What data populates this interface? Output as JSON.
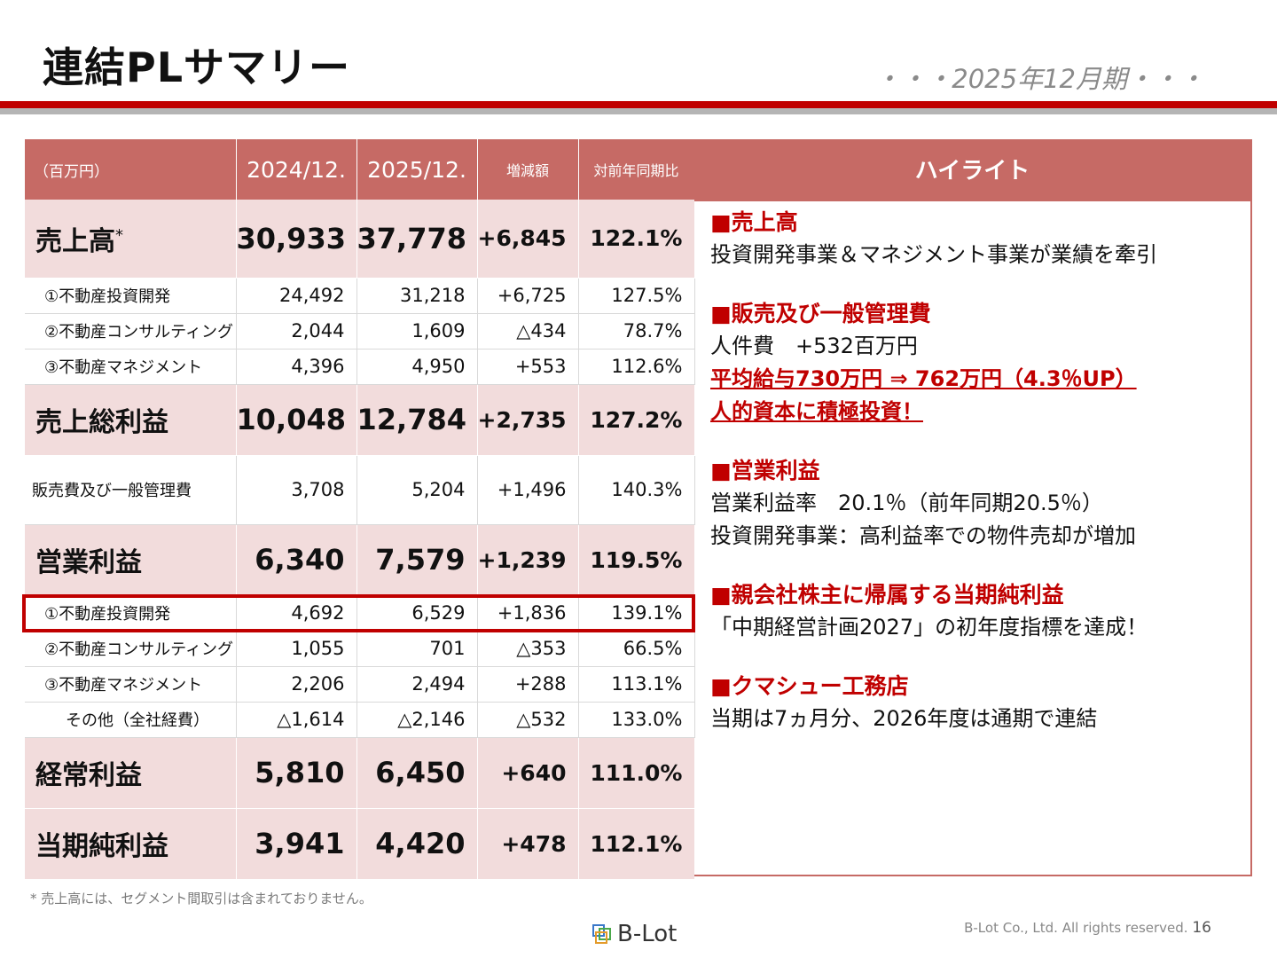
{
  "header": {
    "title": "連結PLサマリー",
    "period": "・・・2025年12月期・・・"
  },
  "table": {
    "headers": [
      "（百万円）",
      "2024/12.",
      "2025/12.",
      "増減額",
      "対前年同期比"
    ],
    "rows": [
      [
        "売上高",
        "30,933",
        "37,778",
        "+6,845",
        "122.1%"
      ],
      [
        "①不動産投資開発",
        "24,492",
        "31,218",
        "+6,725",
        "127.5%"
      ],
      [
        "②不動産コンサルティング",
        "2,044",
        "1,609",
        "△434",
        "78.7%"
      ],
      [
        "③不動産マネジメント",
        "4,396",
        "4,950",
        "+553",
        "112.6%"
      ],
      [
        "売上総利益",
        "10,048",
        "12,784",
        "+2,735",
        "127.2%"
      ],
      [
        "販売費及び一般管理費",
        "3,708",
        "5,204",
        "+1,496",
        "140.3%"
      ],
      [
        "営業利益",
        "6,340",
        "7,579",
        "+1,239",
        "119.5%"
      ],
      [
        "①不動産投資開発",
        "4,692",
        "6,529",
        "+1,836",
        "139.1%"
      ],
      [
        "②不動産コンサルティング",
        "1,055",
        "701",
        "△353",
        "66.5%"
      ],
      [
        "③不動産マネジメント",
        "2,206",
        "2,494",
        "+288",
        "113.1%"
      ],
      [
        "その他（全社経費）",
        "△1,614",
        "△2,146",
        "△532",
        "133.0%"
      ],
      [
        "経常利益",
        "5,810",
        "6,450",
        "+640",
        "111.0%"
      ],
      [
        "当期純利益",
        "3,941",
        "4,420",
        "+478",
        "112.1%"
      ]
    ],
    "asterisk": "*"
  },
  "highlights": {
    "title": "ハイライト",
    "sections": [
      {
        "heading": "■売上高",
        "lines": [
          "投資開発事業＆マネジメント事業が業績を牽引"
        ]
      },
      {
        "heading": "■販売及び一般管理費",
        "lines": [
          "人件費　+532百万円"
        ],
        "emphasis": [
          "平均給与730万円 ⇒ 762万円（4.3％UP）",
          "人的資本に積極投資！"
        ]
      },
      {
        "heading": "■営業利益",
        "lines": [
          "営業利益率　20.1％（前年同期20.5％）",
          "投資開発事業：高利益率での物件売却が増加"
        ]
      },
      {
        "heading": "■親会社株主に帰属する当期純利益",
        "lines": [
          "「中期経営計画2027」の初年度指標を達成！"
        ]
      },
      {
        "heading": "■クマシュー工務店",
        "lines": [
          "当期は7ヵ月分、2026年度は通期で連結"
        ]
      }
    ]
  },
  "footer": {
    "footnote": "* 売上高には、セグメント間取引は含まれておりません。",
    "logo": "B-Lot",
    "copyright": "B-Lot Co., Ltd. All rights reserved.",
    "page": "16"
  },
  "colors": {
    "accent_red": "#c00000",
    "header_fill": "#c66a65",
    "major_row_fill": "#f2dcdc",
    "rule_gray": "#b5b5b5"
  }
}
